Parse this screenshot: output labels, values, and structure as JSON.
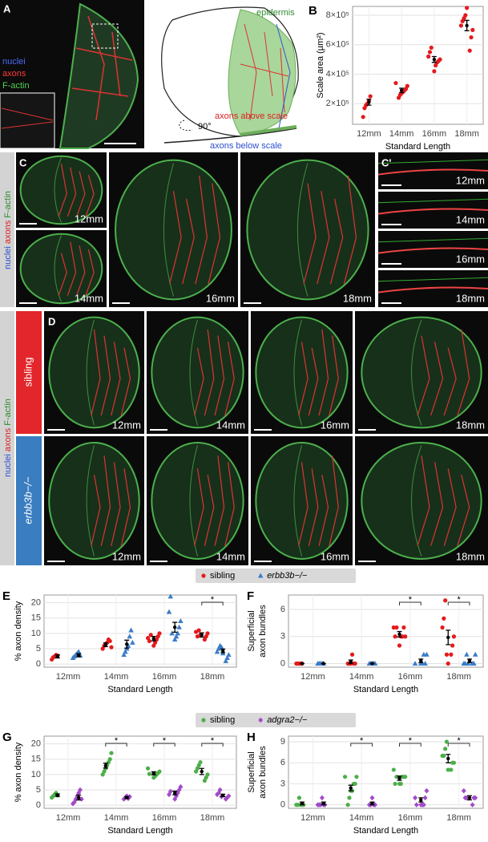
{
  "panel_a": {
    "letter": "A",
    "channels": [
      "nuclei",
      "axons",
      "F-actin"
    ]
  },
  "diagram": {
    "epidermis": "epidermis",
    "above": "axons above scale",
    "below": "axons below scale",
    "angle": "90°"
  },
  "panel_c": {
    "letter": "C",
    "side_label": [
      "nuclei",
      "axons",
      "F-actin"
    ],
    "images": [
      "12mm",
      "14mm",
      "16mm",
      "18mm"
    ]
  },
  "panel_c_prime": {
    "letter": "C'",
    "images": [
      "12mm",
      "14mm",
      "16mm",
      "18mm"
    ]
  },
  "panel_d": {
    "letter": "D",
    "side_label": [
      "nuclei",
      "axons",
      "F-actin"
    ],
    "rows": [
      {
        "label": "sibling",
        "images": [
          "12mm",
          "14mm",
          "16mm",
          "18mm"
        ]
      },
      {
        "label": "erbb3b−/−",
        "images": [
          "12mm",
          "14mm",
          "16mm",
          "18mm"
        ]
      }
    ]
  },
  "chart_data": [
    {
      "type": "dot",
      "panel": "B",
      "ylabel": [
        "Scale area (µm²)"
      ],
      "xlabel": "Standard Length",
      "categories": [
        "12mm",
        "14mm",
        "16mm",
        "18mm"
      ],
      "ylim": [
        60000,
        860000
      ],
      "yticks": [
        {
          "value": 200000,
          "label": "2×10⁵"
        },
        {
          "value": 400000,
          "label": "4×10⁵"
        },
        {
          "value": 600000,
          "label": "6×10⁵"
        },
        {
          "value": 800000,
          "label": "8×10⁵"
        }
      ],
      "grid": true,
      "series": [
        {
          "color": "#e41a1c",
          "marker": "circle",
          "points": [
            [
              110000,
              170000,
              190000,
              200000,
              220000,
              250000
            ],
            [
              240000,
              260000,
              270000,
              280000,
              290000,
              300000,
              320000,
              340000
            ],
            [
              420000,
              460000,
              480000,
              490000,
              500000,
              520000,
              550000,
              580000
            ],
            [
              560000,
              650000,
              700000,
              730000,
              760000,
              780000,
              800000,
              850000
            ]
          ],
          "means": [
            210000,
            290000,
            500000,
            730000
          ],
          "errors": [
            20000,
            15000,
            20000,
            35000
          ]
        }
      ]
    },
    {
      "type": "dot",
      "panel": "E",
      "ylabel": [
        "% axon density"
      ],
      "xlabel": "Standard Length",
      "categories": [
        "12mm",
        "14mm",
        "16mm",
        "18mm"
      ],
      "ylim": [
        -1,
        22.5
      ],
      "yticks": [
        0,
        5,
        10,
        15,
        20
      ],
      "grid": true,
      "legend": "top",
      "significance": [
        null,
        null,
        null,
        "*"
      ],
      "series": [
        {
          "name": "sibling",
          "color": "#e41a1c",
          "marker": "circle",
          "style": "normal",
          "points": [
            [
              1.5,
              2.2,
              2.5,
              3,
              2.8
            ],
            [
              5,
              6,
              6.5,
              7,
              8,
              7.5,
              5.5
            ],
            [
              6,
              7,
              8,
              9,
              10,
              8.5,
              7.5,
              9.5
            ],
            [
              8,
              9,
              10,
              10.5,
              9,
              11,
              9.5
            ]
          ],
          "means": [
            2.5,
            6.3,
            8.3,
            9.5
          ],
          "errors": [
            0.5,
            0.6,
            0.7,
            0.7
          ]
        },
        {
          "name": "erbb3b−/−",
          "color": "#3a7dc9",
          "marker": "triangle",
          "style": "italic",
          "points": [
            [
              2,
              2.5,
              3,
              3.5,
              4,
              2.8
            ],
            [
              3,
              4,
              5,
              6,
              9,
              11,
              7
            ],
            [
              8,
              9,
              10,
              12,
              14,
              17,
              22,
              10
            ],
            [
              1,
              2,
              3,
              4,
              5,
              6,
              5.5,
              3.5
            ]
          ],
          "means": [
            2.9,
            6.5,
            12,
            4.3
          ],
          "errors": [
            0.5,
            1.3,
            1.6,
            0.6
          ]
        }
      ]
    },
    {
      "type": "dot",
      "panel": "F",
      "ylabel": [
        "Superficial",
        "axon bundles"
      ],
      "xlabel": "Standard Length",
      "categories": [
        "12mm",
        "14mm",
        "16mm",
        "18mm"
      ],
      "ylim": [
        -0.4,
        7.6
      ],
      "yticks": [
        0,
        3,
        6
      ],
      "grid": true,
      "significance": [
        null,
        null,
        "*",
        "*"
      ],
      "series": [
        {
          "color": "#e41a1c",
          "marker": "circle",
          "points": [
            [
              0,
              0,
              0,
              0,
              0
            ],
            [
              0,
              0,
              0,
              1,
              0,
              0
            ],
            [
              2,
              3,
              3,
              4,
              3,
              4,
              3,
              4
            ],
            [
              1,
              2,
              3,
              4,
              5,
              7,
              1,
              0
            ]
          ],
          "means": [
            0,
            0.2,
            3.25,
            2.9
          ],
          "errors": [
            0,
            0.2,
            0.3,
            0.8
          ]
        },
        {
          "color": "#3a7dc9",
          "marker": "triangle",
          "points": [
            [
              0,
              0,
              0,
              0,
              0
            ],
            [
              0,
              0,
              0,
              0,
              0
            ],
            [
              0,
              0,
              1,
              0,
              1,
              0
            ],
            [
              0,
              0,
              1,
              0,
              0,
              1,
              0
            ]
          ],
          "means": [
            0,
            0,
            0.3,
            0.3
          ],
          "errors": [
            0,
            0,
            0.2,
            0.2
          ]
        }
      ]
    },
    {
      "type": "dot",
      "panel": "G",
      "ylabel": [
        "% axon density"
      ],
      "xlabel": "Standard Length",
      "categories": [
        "12mm",
        "14mm",
        "16mm",
        "18mm"
      ],
      "ylim": [
        -1,
        22.5
      ],
      "yticks": [
        0,
        5,
        10,
        15,
        20
      ],
      "grid": true,
      "legend": "top",
      "significance": [
        null,
        "*",
        "*",
        "*"
      ],
      "series": [
        {
          "name": "sibling",
          "color": "#4daf4a",
          "marker": "circle",
          "style": "normal",
          "points": [
            [
              2.5,
              3,
              3.5,
              4,
              3.2
            ],
            [
              10,
              11,
              12,
              13,
              14,
              15,
              17
            ],
            [
              9,
              9.5,
              10,
              10.5,
              11,
              12,
              10.2
            ],
            [
              8,
              9,
              10,
              11,
              12,
              13,
              14
            ]
          ],
          "means": [
            3.3,
            12.9,
            10.4,
            11
          ],
          "errors": [
            0.4,
            0.8,
            0.5,
            1
          ]
        },
        {
          "name": "adgra2−/−",
          "color": "#a24bc9",
          "marker": "diamond",
          "style": "italic",
          "points": [
            [
              0.5,
              1,
              2,
              3,
              4,
              5,
              2
            ],
            [
              2,
              2.5,
              3,
              2.2,
              2.8
            ],
            [
              2,
              3,
              4,
              5,
              6,
              3.5,
              4.5
            ],
            [
              2,
              2.5,
              3,
              3.5,
              4,
              5,
              2.8
            ]
          ],
          "means": [
            2.5,
            2.5,
            4,
            3.2
          ],
          "errors": [
            0.8,
            0.3,
            0.6,
            0.4
          ]
        }
      ]
    },
    {
      "type": "dot",
      "panel": "H",
      "ylabel": [
        "Superficial",
        "axon bundles"
      ],
      "xlabel": "Standard Length",
      "categories": [
        "12mm",
        "14mm",
        "16mm",
        "18mm"
      ],
      "ylim": [
        -0.5,
        9.8
      ],
      "yticks": [
        0,
        3,
        6,
        9
      ],
      "grid": true,
      "significance": [
        null,
        "*",
        "*",
        "*"
      ],
      "series": [
        {
          "color": "#4daf4a",
          "marker": "circle",
          "points": [
            [
              0,
              0,
              1,
              0,
              0,
              0
            ],
            [
              0,
              1,
              2,
              2,
              3,
              3,
              4,
              4
            ],
            [
              3,
              3,
              4,
              4,
              4,
              5,
              3,
              4
            ],
            [
              5,
              6,
              6,
              7,
              7,
              8,
              9,
              5
            ]
          ],
          "means": [
            0.2,
            2.4,
            3.8,
            6.6
          ],
          "errors": [
            0.2,
            0.4,
            0.3,
            0.6
          ]
        },
        {
          "color": "#a24bc9",
          "marker": "diamond",
          "points": [
            [
              0,
              0,
              0,
              1,
              0,
              0
            ],
            [
              0,
              0,
              1,
              0,
              0
            ],
            [
              0,
              0,
              0,
              1,
              2,
              1,
              0
            ],
            [
              0,
              1,
              1,
              2,
              1,
              1
            ]
          ],
          "means": [
            0.2,
            0.2,
            0.7,
            1
          ],
          "errors": [
            0.2,
            0.2,
            0.3,
            0.3
          ]
        }
      ]
    }
  ]
}
